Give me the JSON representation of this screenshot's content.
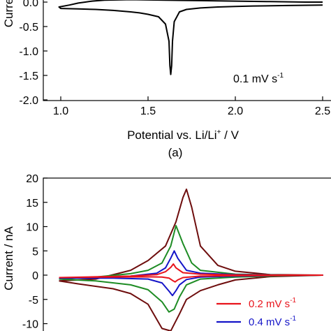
{
  "chart_data": [
    {
      "type": "line",
      "title": "",
      "xlabel": "Potential vs. Li/Li",
      "xlabel_sup": "+",
      "xlabel_unit": " / V",
      "ylabel": "Curre",
      "panel_label": "(a)",
      "annotation": {
        "text": "0.1 mV s",
        "sup": "-1"
      },
      "xlim": [
        0.75,
        2.5
      ],
      "ylim": [
        -2.0,
        0.0
      ],
      "xticks": [
        1.0,
        1.5,
        2.0,
        2.5
      ],
      "xtick_labels": [
        "1.0",
        "1.5",
        "2.0",
        "2.5"
      ],
      "yticks": [
        0.0,
        -0.5,
        -1.0,
        -1.5,
        -2.0
      ],
      "ytick_labels": [
        "0.0",
        "-0.5",
        "-1.0",
        "-1.5",
        "-2.0"
      ],
      "grid": false,
      "series": [
        {
          "color": "#000000",
          "x": [
            2.5,
            2.3,
            2.1,
            2.0,
            1.9,
            1.8,
            1.72,
            1.68,
            1.65,
            1.64,
            1.635,
            1.63,
            1.625,
            1.62,
            1.6,
            1.56,
            1.5,
            1.45,
            1.4,
            1.3,
            1.2,
            1.1,
            1.0,
            0.99,
            1.05,
            1.1,
            1.14,
            1.18,
            1.25,
            1.4,
            1.6,
            1.8,
            2.0,
            2.2,
            2.4,
            2.5
          ],
          "y": [
            -0.06,
            -0.07,
            -0.08,
            -0.09,
            -0.1,
            -0.12,
            -0.15,
            -0.2,
            -0.4,
            -0.8,
            -1.3,
            -1.48,
            -1.3,
            -0.8,
            -0.45,
            -0.3,
            -0.25,
            -0.22,
            -0.2,
            -0.17,
            -0.15,
            -0.14,
            -0.13,
            -0.1,
            -0.06,
            -0.02,
            0.0,
            0.02,
            0.04,
            0.05,
            0.04,
            0.03,
            0.02,
            0.01,
            0.0,
            0.0
          ]
        }
      ]
    },
    {
      "type": "line",
      "title": "",
      "xlabel": "",
      "ylabel": "Current / nA",
      "ylim": [
        -11.5,
        20
      ],
      "yticks": [
        20,
        15,
        10,
        5,
        0,
        -5,
        -10
      ],
      "ytick_labels": [
        "20",
        "15",
        "10",
        "5",
        "0",
        "-5",
        "-10"
      ],
      "xlim": [
        0.75,
        2.5
      ],
      "grid": false,
      "legend": "bottom-right",
      "series": [
        {
          "name": "0.2 mV s",
          "name_sup": "-1",
          "color": "#e8131b",
          "x": [
            0.99,
            1.2,
            1.4,
            1.55,
            1.6,
            1.63,
            1.645,
            1.66,
            1.7,
            1.8,
            2.0,
            2.3,
            2.5,
            2.3,
            2.0,
            1.8,
            1.7,
            1.67,
            1.655,
            1.64,
            1.62,
            1.58,
            1.5,
            1.3,
            1.1,
            0.99
          ],
          "y": [
            -0.5,
            -0.35,
            -0.2,
            0.1,
            0.7,
            1.6,
            2.3,
            1.5,
            0.5,
            0.2,
            0.05,
            0.0,
            0.0,
            -0.05,
            -0.1,
            -0.2,
            -0.5,
            -1.0,
            -1.4,
            -1.1,
            -0.6,
            -0.4,
            -0.35,
            -0.4,
            -0.45,
            -0.5
          ]
        },
        {
          "name": "0.4 mV s",
          "name_sup": "-1",
          "color": "#1414c8",
          "x": [
            0.99,
            1.2,
            1.4,
            1.55,
            1.6,
            1.63,
            1.65,
            1.67,
            1.72,
            1.8,
            2.0,
            2.3,
            2.5,
            2.3,
            2.0,
            1.8,
            1.72,
            1.68,
            1.66,
            1.64,
            1.62,
            1.58,
            1.5,
            1.3,
            1.1,
            0.99
          ],
          "y": [
            -0.6,
            -0.4,
            -0.2,
            0.4,
            1.5,
            3.5,
            5.0,
            3.5,
            1.0,
            0.4,
            0.1,
            0.0,
            0.0,
            -0.05,
            -0.2,
            -0.4,
            -0.9,
            -2.0,
            -3.2,
            -4.2,
            -3.3,
            -1.6,
            -0.8,
            -0.6,
            -0.6,
            -0.6
          ]
        },
        {
          "name": "",
          "color": "#1e8c24",
          "x": [
            0.99,
            1.2,
            1.4,
            1.5,
            1.58,
            1.63,
            1.66,
            1.7,
            1.75,
            1.8,
            2.0,
            2.3,
            2.5,
            2.3,
            2.0,
            1.8,
            1.72,
            1.68,
            1.65,
            1.62,
            1.58,
            1.5,
            1.4,
            1.2,
            0.99
          ],
          "y": [
            -0.8,
            -0.4,
            0.3,
            1.0,
            2.5,
            6.0,
            10.2,
            6.5,
            2.5,
            1.0,
            0.2,
            0.0,
            0.0,
            -0.1,
            -0.4,
            -0.8,
            -2.0,
            -4.5,
            -7.0,
            -7.6,
            -5.5,
            -3.0,
            -2.0,
            -1.2,
            -0.8
          ]
        },
        {
          "name": "",
          "color": "#6e0d0d",
          "x": [
            0.99,
            1.2,
            1.4,
            1.5,
            1.6,
            1.66,
            1.7,
            1.72,
            1.75,
            1.8,
            1.9,
            2.0,
            2.2,
            2.5,
            2.2,
            2.0,
            1.9,
            1.8,
            1.72,
            1.68,
            1.63,
            1.58,
            1.5,
            1.4,
            1.3,
            1.1,
            0.99
          ],
          "y": [
            -1.2,
            -0.8,
            1.0,
            3.0,
            6.0,
            11.0,
            16.0,
            17.7,
            14.0,
            6.0,
            2.0,
            0.8,
            0.1,
            0.0,
            -0.3,
            -1.0,
            -2.0,
            -3.2,
            -5.0,
            -8.0,
            -11.5,
            -11.0,
            -6.0,
            -3.8,
            -2.8,
            -1.8,
            -1.2
          ]
        }
      ]
    }
  ]
}
